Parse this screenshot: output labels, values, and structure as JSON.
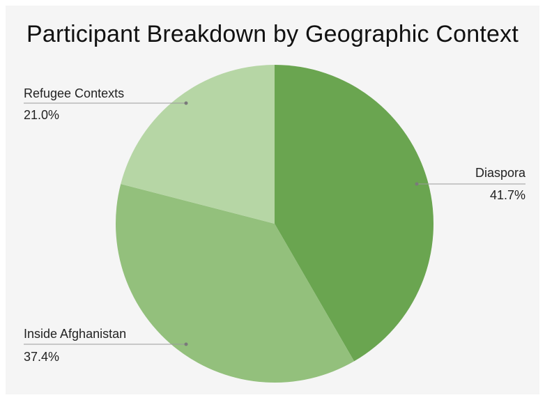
{
  "chart_data": {
    "type": "pie",
    "title": "Participant Breakdown by Geographic Context",
    "slices": [
      {
        "label": "Diaspora",
        "value": 41.7,
        "value_label": "41.7%",
        "color": "#6aa550"
      },
      {
        "label": "Inside Afghanistan",
        "value": 37.4,
        "value_label": "37.4%",
        "color": "#93c07c"
      },
      {
        "label": "Refugee Contexts",
        "value": 21.0,
        "value_label": "21.0%",
        "color": "#b6d6a5"
      }
    ],
    "start_angle": "top",
    "direction": "clockwise",
    "legend": "none (callout labels)"
  }
}
